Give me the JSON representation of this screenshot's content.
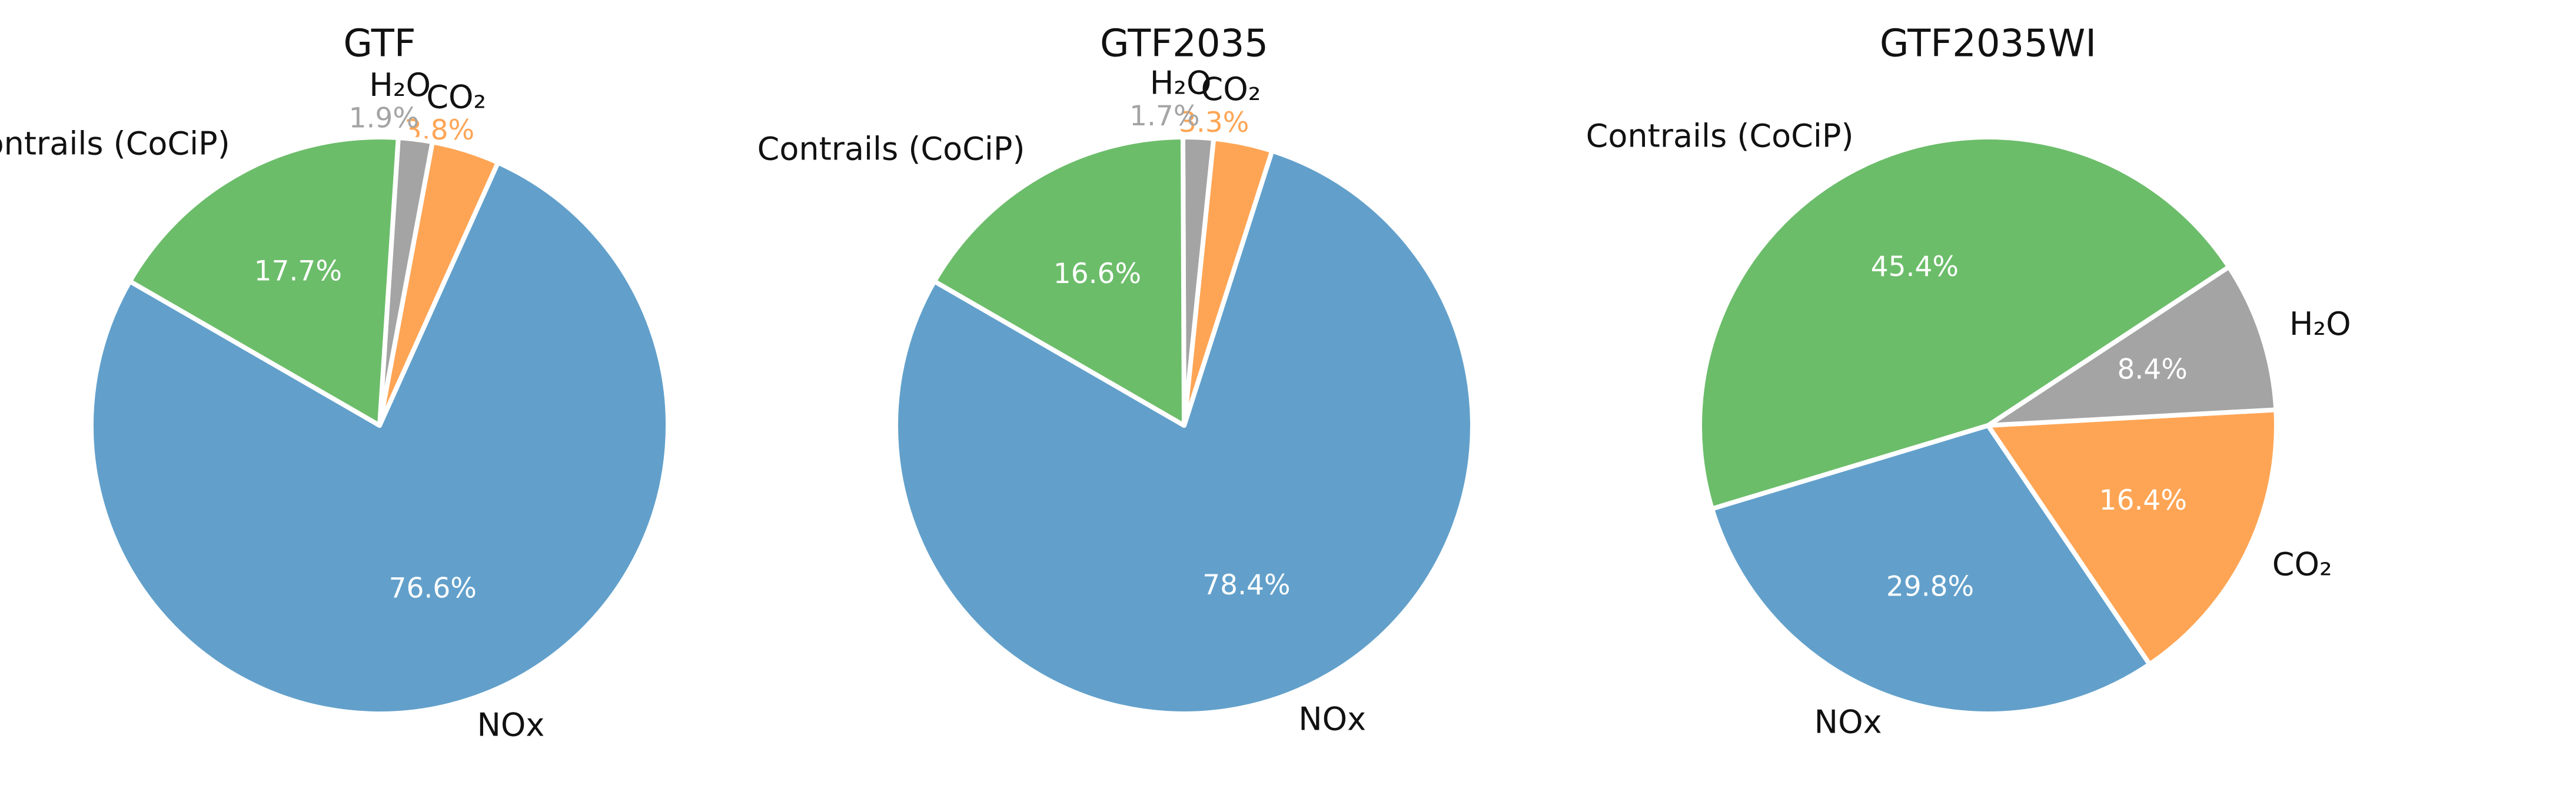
{
  "chart_data": [
    {
      "type": "pie",
      "title": "GTF",
      "slices": [
        {
          "label": "NOx",
          "value": 76.6,
          "pct_text": "76.6%",
          "color": "#62a0cb"
        },
        {
          "label": "CO₂",
          "value": 3.8,
          "pct_text": "3.8%",
          "color": "#fea555"
        },
        {
          "label": "H₂O",
          "value": 1.9,
          "pct_text": "1.9%",
          "color": "#a4a4a4"
        },
        {
          "label": "Contrails (CoCiP)",
          "value": 17.7,
          "pct_text": "17.7%",
          "color": "#6cbd6a"
        }
      ]
    },
    {
      "type": "pie",
      "title": "GTF2035",
      "slices": [
        {
          "label": "NOx",
          "value": 78.4,
          "pct_text": "78.4%",
          "color": "#62a0cb"
        },
        {
          "label": "CO₂",
          "value": 3.3,
          "pct_text": "3.3%",
          "color": "#fea555"
        },
        {
          "label": "H₂O",
          "value": 1.7,
          "pct_text": "1.7%",
          "color": "#a4a4a4"
        },
        {
          "label": "Contrails (CoCiP)",
          "value": 16.6,
          "pct_text": "16.6%",
          "color": "#6cbd6a"
        }
      ]
    },
    {
      "type": "pie",
      "title": "GTF2035WI",
      "slices": [
        {
          "label": "NOx",
          "value": 29.8,
          "pct_text": "29.8%",
          "color": "#62a0cb"
        },
        {
          "label": "CO₂",
          "value": 16.4,
          "pct_text": "16.4%",
          "color": "#fea555"
        },
        {
          "label": "H₂O",
          "value": 8.4,
          "pct_text": "8.4%",
          "color": "#a4a4a4"
        },
        {
          "label": "Contrails (CoCiP)",
          "value": 45.4,
          "pct_text": "45.4%",
          "color": "#6cbd6a"
        }
      ]
    }
  ]
}
